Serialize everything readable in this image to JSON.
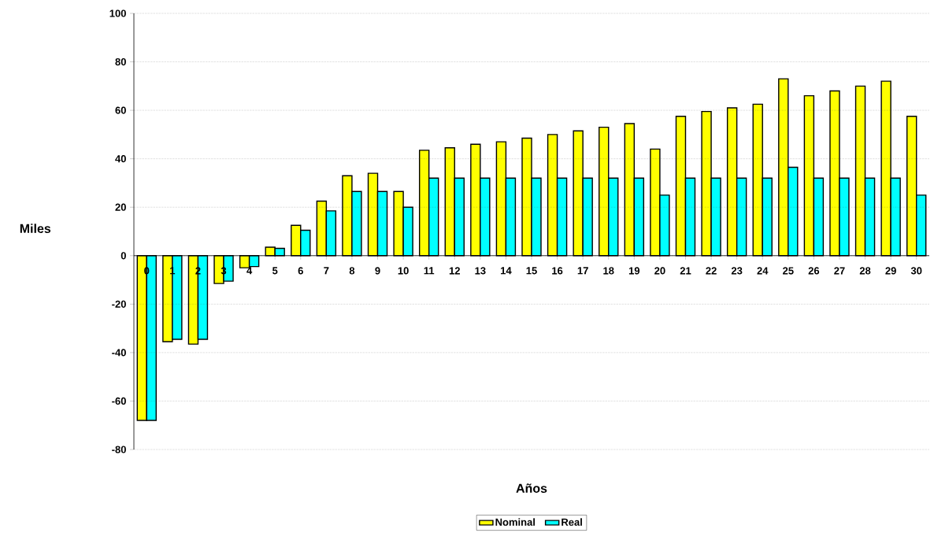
{
  "chart_data": {
    "type": "bar",
    "xlabel": "Años",
    "ylabel": "Miles",
    "categories": [
      "0",
      "1",
      "2",
      "3",
      "4",
      "5",
      "6",
      "7",
      "8",
      "9",
      "10",
      "11",
      "12",
      "13",
      "14",
      "15",
      "16",
      "17",
      "18",
      "19",
      "20",
      "21",
      "22",
      "23",
      "24",
      "25",
      "26",
      "27",
      "28",
      "29",
      "30"
    ],
    "series": [
      {
        "name": "Nominal",
        "color": "#ffff00",
        "values": [
          -68,
          -35.5,
          -36.5,
          -11.5,
          -5,
          3.5,
          12.5,
          22.5,
          33,
          34,
          26.5,
          43.5,
          44.5,
          46,
          47,
          48.5,
          50,
          51.5,
          53,
          54.5,
          44,
          57.5,
          59.5,
          61,
          62.5,
          73,
          66,
          68,
          70,
          72,
          57.5
        ]
      },
      {
        "name": "Real",
        "color": "#00ffff",
        "values": [
          -68,
          -34.5,
          -34.5,
          -10.5,
          -4.5,
          3,
          10.5,
          18.5,
          26.5,
          26.5,
          20,
          32,
          32,
          32,
          32,
          32,
          32,
          32,
          32,
          32,
          25,
          32,
          32,
          32,
          32,
          36.5,
          32,
          32,
          32,
          32,
          25
        ]
      }
    ],
    "ylim": [
      -80,
      100
    ],
    "yticks": [
      -80,
      -60,
      -40,
      -20,
      0,
      20,
      40,
      60,
      80,
      100
    ],
    "grid": "y",
    "legend": "bottom"
  }
}
